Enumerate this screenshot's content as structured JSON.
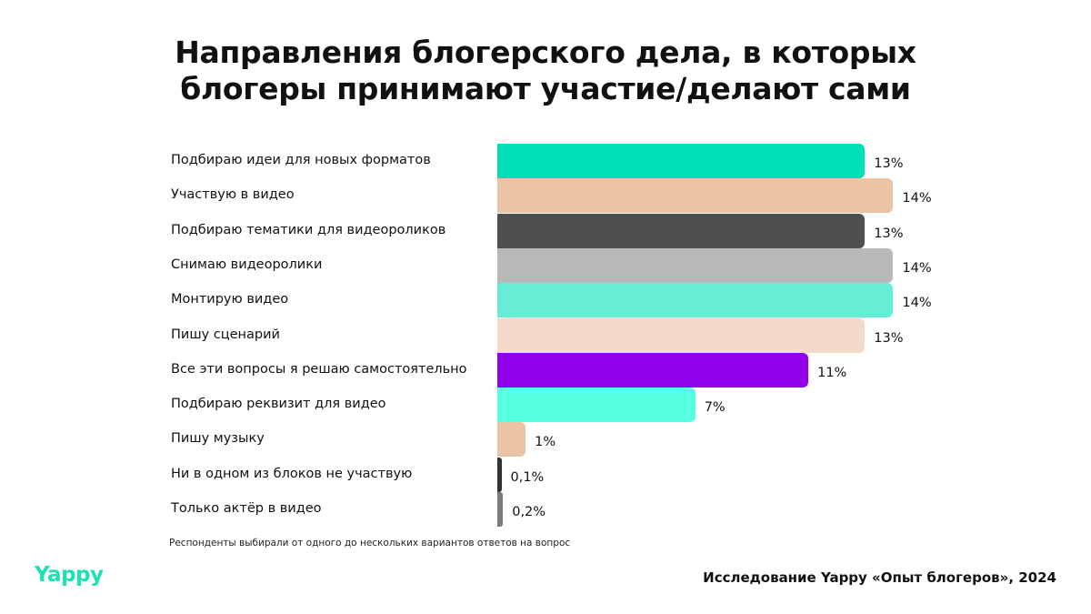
{
  "chart_data": {
    "type": "bar",
    "orientation": "horizontal",
    "title": [
      "Направления блогерского дела, в которых",
      "блогеры принимают участие/делают сами"
    ],
    "categories": [
      "Подбираю идеи для новых форматов",
      "Участвую в видео",
      "Подбираю тематики для видеороликов",
      "Снимаю видеоролики",
      "Монтирую видео",
      "Пишу сценарий",
      "Все эти вопросы я решаю самостоятельно",
      "Подбираю реквизит для видео",
      "Пишу музыку",
      "Ни в одном из блоков не участвую",
      "Только актёр в видео"
    ],
    "values": [
      13,
      14,
      13,
      14,
      14,
      13,
      11,
      7,
      1,
      0.1,
      0.2
    ],
    "value_labels": [
      "13%",
      "14%",
      "13%",
      "14%",
      "14%",
      "13%",
      "11%",
      "7%",
      "1%",
      "0,1%",
      "0,2%"
    ],
    "colors": [
      "#00e0b8",
      "#ebc3a5",
      "#4f4f4f",
      "#b8b8b8",
      "#66edd5",
      "#f3dac8",
      "#9000e8",
      "#55ffe0",
      "#ebc3a5",
      "#333333",
      "#7a7a7a"
    ],
    "unit": "%",
    "grid": false,
    "legend": "none"
  },
  "footer": {
    "note": "Респонденты выбирали от одного до нескольких вариантов ответов на вопрос",
    "logo": "Yappy",
    "source": "Исследование Yappy «Опыт блогеров», 2024"
  }
}
